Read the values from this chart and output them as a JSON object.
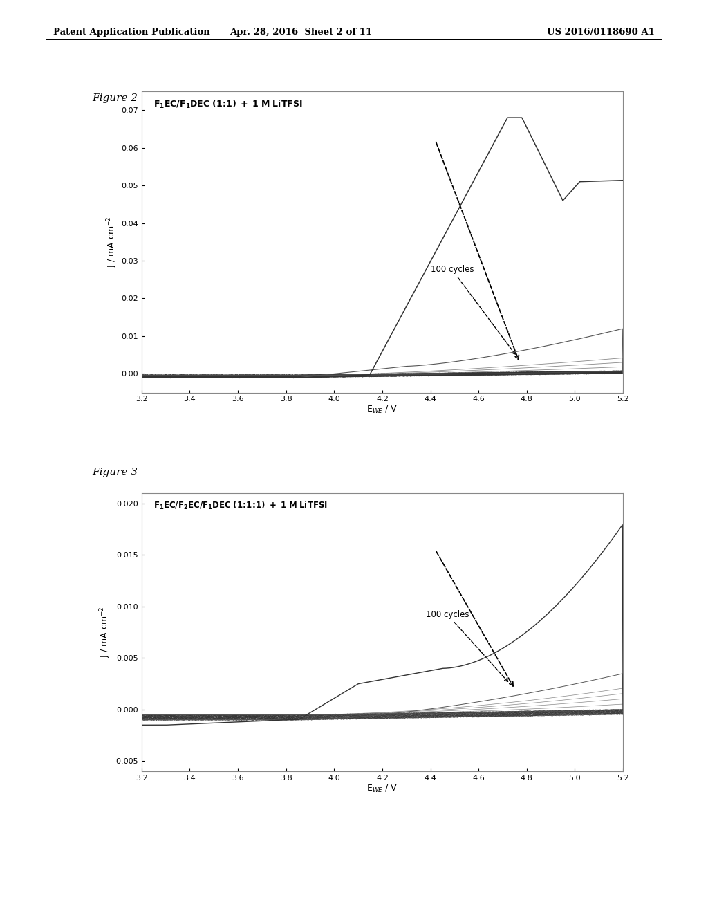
{
  "xlabel1": "E$_{WE}$ / V",
  "xlabel2": "E$_{WE}$ / V",
  "ylabel": "J / mA cm$^{-2}$",
  "fig2_xlim": [
    3.2,
    5.2
  ],
  "fig2_ylim": [
    -0.005,
    0.075
  ],
  "fig2_yticks": [
    0.0,
    0.01,
    0.02,
    0.03,
    0.04,
    0.05,
    0.06,
    0.07
  ],
  "fig2_xticks": [
    3.2,
    3.4,
    3.6,
    3.8,
    4.0,
    4.2,
    4.4,
    4.6,
    4.8,
    5.0,
    5.2
  ],
  "fig3_xlim": [
    3.2,
    5.2
  ],
  "fig3_ylim": [
    -0.006,
    0.021
  ],
  "fig3_yticks": [
    -0.005,
    0.0,
    0.005,
    0.01,
    0.015,
    0.02
  ],
  "fig3_xticks": [
    3.2,
    3.4,
    3.6,
    3.8,
    4.0,
    4.2,
    4.4,
    4.6,
    4.8,
    5.0,
    5.2
  ],
  "bg_color": "#ffffff",
  "plot_bg": "#ffffff",
  "header_left": "Patent Application Publication",
  "header_mid": "Apr. 28, 2016  Sheet 2 of 11",
  "header_right": "US 2016/0118690 A1",
  "fig2_label": "Figure 2",
  "fig3_label": "Figure 3",
  "annotation_100cycles": "100 cycles"
}
